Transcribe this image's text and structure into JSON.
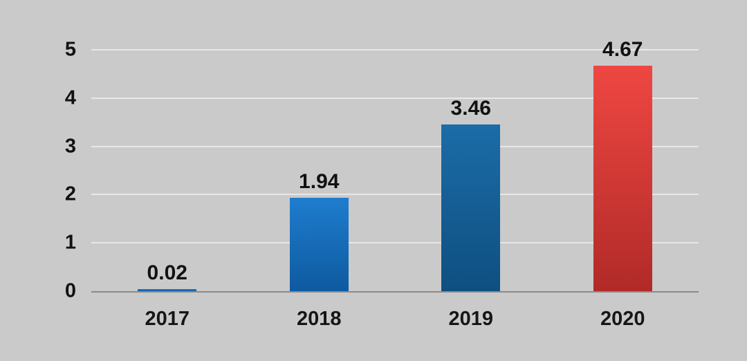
{
  "chart_data": {
    "type": "bar",
    "title": "",
    "xlabel": "",
    "ylabel": "",
    "categories": [
      "2017",
      "2018",
      "2019",
      "2020"
    ],
    "values": [
      0.02,
      1.94,
      3.46,
      4.67
    ],
    "value_labels": [
      "0.02",
      "1.94",
      "3.46",
      "4.67"
    ],
    "ylim": [
      0,
      5
    ],
    "yticks": [
      0,
      1,
      2,
      3,
      4,
      5
    ],
    "grid": true,
    "legend": false,
    "bar_colors": [
      {
        "top": "#1f7dce",
        "bottom": "#0e5aa0"
      },
      {
        "top": "#1f7dce",
        "bottom": "#0e5aa0"
      },
      {
        "top": "#1b6ca8",
        "bottom": "#0f4f80"
      },
      {
        "top": "#ef4742",
        "bottom": "#b12a28"
      }
    ],
    "colors": {
      "background": "#cacaca",
      "gridline": "#e8e8e8",
      "axis_line": "#8a8a8a",
      "label_text": "#111111"
    }
  }
}
